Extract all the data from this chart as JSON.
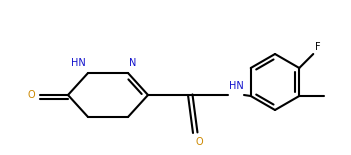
{
  "bg_color": "#ffffff",
  "line_color": "#000000",
  "n_color": "#1010cc",
  "o_color": "#cc8800",
  "lw": 1.5,
  "fig_width": 3.51,
  "fig_height": 1.55,
  "dpi": 100,
  "xlim": [
    0,
    351
  ],
  "ylim": [
    0,
    155
  ]
}
